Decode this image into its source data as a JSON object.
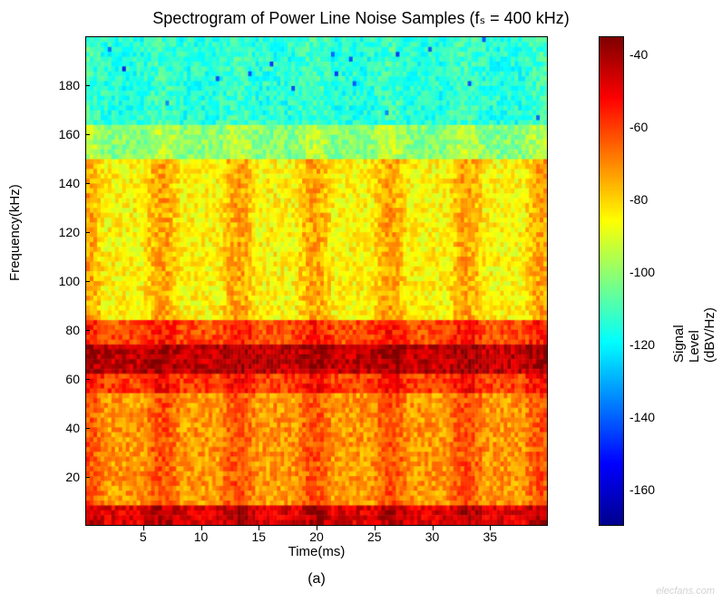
{
  "title": "Spectrogram of Power Line Noise Samples (fₛ = 400 kHz)",
  "xlabel": "Time(ms)",
  "ylabel": "Frequency(kHz)",
  "colorbar_label": "Signal Level (dBV/Hz)",
  "subcaption": "(a)",
  "watermark": "elecfans.com",
  "title_fontsize": 18,
  "label_fontsize": 15,
  "tick_fontsize": 14,
  "background_color": "#ffffff",
  "axis_line_color": "#000000",
  "plot": {
    "type": "spectrogram",
    "x_range": [
      0,
      40
    ],
    "y_range": [
      0,
      200
    ],
    "xticks": [
      5,
      10,
      15,
      20,
      25,
      30,
      35
    ],
    "yticks": [
      20,
      40,
      60,
      80,
      100,
      120,
      140,
      160,
      180
    ],
    "resolution_cols": 128,
    "resolution_rows": 100,
    "seed": 42,
    "noise_amplitude_db": 8,
    "bands": [
      {
        "freq_from": 0,
        "freq_to": 8,
        "base_db": -48,
        "periodic_amp": 6,
        "period_ms": 6.6
      },
      {
        "freq_from": 8,
        "freq_to": 55,
        "base_db": -72,
        "periodic_amp": 10,
        "period_ms": 6.6
      },
      {
        "freq_from": 55,
        "freq_to": 62,
        "base_db": -60,
        "periodic_amp": 8,
        "period_ms": 6.6
      },
      {
        "freq_from": 62,
        "freq_to": 75,
        "base_db": -44,
        "periodic_amp": 4,
        "period_ms": 6.6
      },
      {
        "freq_from": 75,
        "freq_to": 85,
        "base_db": -62,
        "periodic_amp": 8,
        "period_ms": 6.6
      },
      {
        "freq_from": 85,
        "freq_to": 150,
        "base_db": -85,
        "periodic_amp": 12,
        "period_ms": 6.6
      },
      {
        "freq_from": 150,
        "freq_to": 165,
        "base_db": -102,
        "periodic_amp": 8,
        "period_ms": 6.6
      },
      {
        "freq_from": 165,
        "freq_to": 200,
        "base_db": -115,
        "periodic_amp": 4,
        "period_ms": 6.6
      }
    ]
  },
  "colorbar": {
    "min": -170,
    "max": -35,
    "ticks": [
      -40,
      -60,
      -80,
      -100,
      -120,
      -140,
      -160
    ],
    "colormap": "jet",
    "stops": [
      {
        "v": 0.0,
        "c": "#00008f"
      },
      {
        "v": 0.125,
        "c": "#0000ff"
      },
      {
        "v": 0.375,
        "c": "#00ffff"
      },
      {
        "v": 0.625,
        "c": "#ffff00"
      },
      {
        "v": 0.875,
        "c": "#ff0000"
      },
      {
        "v": 1.0,
        "c": "#800000"
      }
    ]
  }
}
